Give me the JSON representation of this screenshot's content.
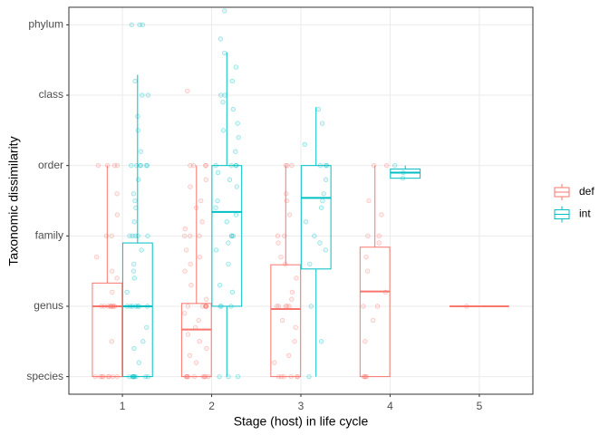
{
  "chart_data": {
    "type": "box",
    "xlabel": "Stage (host) in life cycle",
    "ylabel": "Taxonomic dissimilarity",
    "categories": [
      "1",
      "2",
      "3",
      "4",
      "5"
    ],
    "ylim": [
      0.75,
      6.25
    ],
    "yticks": [
      {
        "value": 1,
        "label": "species"
      },
      {
        "value": 2,
        "label": "genus"
      },
      {
        "value": 3,
        "label": "family"
      },
      {
        "value": 4,
        "label": "order"
      },
      {
        "value": 5,
        "label": "class"
      },
      {
        "value": 6,
        "label": "phylum"
      }
    ],
    "grid": true,
    "legend_position": "right",
    "series": [
      {
        "name": "def",
        "color": "#F8766D",
        "boxes": [
          {
            "min": 1,
            "q1": 1,
            "median": 2,
            "q3": 2.33,
            "max": 4,
            "points": [
              1,
              1,
              1,
              1,
              1,
              1,
              1,
              2,
              2,
              2,
              2,
              2,
              2,
              2,
              2,
              2.2,
              2.5,
              2.7,
              3,
              3,
              3.3,
              4,
              4,
              4,
              4,
              1.5,
              2,
              1,
              2.4,
              3.6
            ]
          },
          {
            "min": 1,
            "q1": 1,
            "median": 1.67,
            "q3": 2.04,
            "max": 4,
            "points": [
              1,
              1,
              1,
              1,
              1,
              1,
              1,
              1,
              1,
              1.3,
              1.5,
              1.6,
              1.7,
              1.8,
              2,
              2,
              2,
              2,
              2,
              2,
              2,
              2.3,
              2.5,
              2.6,
              2.8,
              3,
              3,
              3,
              3.2,
              3.4,
              3.5,
              3.7,
              4,
              4,
              4,
              4,
              5.06,
              1.2,
              1.9,
              2.1,
              2.7,
              1.4,
              3.1,
              3.8
            ]
          },
          {
            "min": 1,
            "q1": 1,
            "median": 1.96,
            "q3": 2.59,
            "max": 4,
            "points": [
              1,
              1,
              1,
              1,
              1,
              1,
              1.3,
              1.5,
              1.7,
              2,
              2,
              2,
              2,
              2,
              2.2,
              2.4,
              2.6,
              2.9,
              3,
              3,
              3.3,
              3.6,
              4,
              4,
              4,
              1.8,
              2.1,
              1.2,
              2.7,
              3.5
            ]
          },
          {
            "min": 1,
            "q1": 1,
            "median": 2.21,
            "q3": 2.84,
            "max": 4,
            "points": [
              1,
              1,
              1,
              1,
              1.5,
              2,
              2,
              2.2,
              2.5,
              2.7,
              3,
              3,
              3.5,
              4,
              4,
              1.8,
              2.9,
              3.3
            ]
          },
          {
            "min": 2,
            "q1": 2,
            "median": 2,
            "q3": 2,
            "max": 2,
            "points": [
              2
            ]
          }
        ]
      },
      {
        "name": "int",
        "color": "#00BFC4",
        "boxes": [
          {
            "min": 1,
            "q1": 1,
            "median": 2,
            "q3": 2.9,
            "max": 5.29,
            "points": [
              1,
              1,
              1,
              1,
              1,
              1,
              1,
              1,
              1,
              1.2,
              1.5,
              1.7,
              2,
              2,
              2,
              2,
              2,
              2,
              2,
              2.2,
              2.4,
              2.6,
              2.8,
              3,
              3,
              3,
              3,
              3,
              3.2,
              3.4,
              3.6,
              3.8,
              4,
              4,
              4,
              4,
              4,
              4,
              4.2,
              4.5,
              4.7,
              5,
              5,
              5.2,
              6,
              6,
              6,
              1.4,
              2.5,
              3.5
            ]
          },
          {
            "min": 1,
            "q1": 2,
            "median": 3.34,
            "q3": 4,
            "max": 5.61,
            "points": [
              1,
              1,
              1,
              2,
              2,
              2,
              2.3,
              2.6,
              2.8,
              3,
              3,
              3,
              3.2,
              3.4,
              3.5,
              3.7,
              3.9,
              4,
              4,
              4,
              4,
              4.2,
              4.4,
              4.6,
              4.8,
              5,
              5,
              5.2,
              5.4,
              5.6,
              5.8,
              6.2,
              3.3,
              2.9,
              4.5,
              3.8,
              2.2,
              4.9
            ]
          },
          {
            "min": 1,
            "q1": 2.53,
            "median": 3.54,
            "q3": 4,
            "max": 4.83,
            "points": [
              1,
              1.5,
              2,
              2.6,
              2.9,
              3,
              3.2,
              3.5,
              3.6,
              3.8,
              4,
              4,
              4,
              4.3,
              4.6,
              4.8,
              3.4,
              2.8
            ]
          },
          {
            "min": 3.82,
            "q1": 3.82,
            "median": 3.9,
            "q3": 3.95,
            "max": 4,
            "points": [
              3.82,
              3.9,
              4
            ]
          },
          null
        ]
      }
    ]
  }
}
